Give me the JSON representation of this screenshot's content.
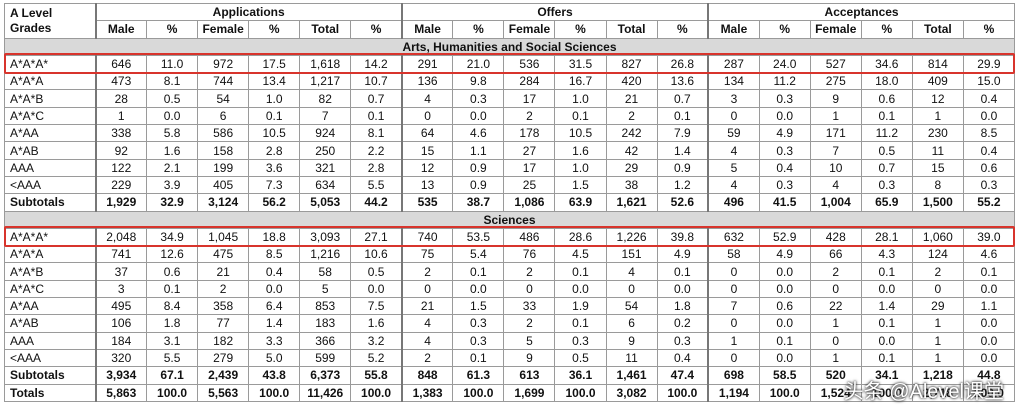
{
  "header": {
    "grades_label": "A Level Grades",
    "groups": [
      "Applications",
      "Offers",
      "Acceptances"
    ],
    "columns": [
      "Male",
      "%",
      "Female",
      "%",
      "Total",
      "%"
    ]
  },
  "sections": [
    {
      "title": "Arts, Humanities and Social Sciences",
      "rows": [
        [
          "A*A*A*",
          "646",
          "11.0",
          "972",
          "17.5",
          "1,618",
          "14.2",
          "291",
          "21.0",
          "536",
          "31.5",
          "827",
          "26.8",
          "287",
          "24.0",
          "527",
          "34.6",
          "814",
          "29.9"
        ],
        [
          "A*A*A",
          "473",
          "8.1",
          "744",
          "13.4",
          "1,217",
          "10.7",
          "136",
          "9.8",
          "284",
          "16.7",
          "420",
          "13.6",
          "134",
          "11.2",
          "275",
          "18.0",
          "409",
          "15.0"
        ],
        [
          "A*A*B",
          "28",
          "0.5",
          "54",
          "1.0",
          "82",
          "0.7",
          "4",
          "0.3",
          "17",
          "1.0",
          "21",
          "0.7",
          "3",
          "0.3",
          "9",
          "0.6",
          "12",
          "0.4"
        ],
        [
          "A*A*C",
          "1",
          "0.0",
          "6",
          "0.1",
          "7",
          "0.1",
          "0",
          "0.0",
          "2",
          "0.1",
          "2",
          "0.1",
          "0",
          "0.0",
          "1",
          "0.1",
          "1",
          "0.0"
        ],
        [
          "A*AA",
          "338",
          "5.8",
          "586",
          "10.5",
          "924",
          "8.1",
          "64",
          "4.6",
          "178",
          "10.5",
          "242",
          "7.9",
          "59",
          "4.9",
          "171",
          "11.2",
          "230",
          "8.5"
        ],
        [
          "A*AB",
          "92",
          "1.6",
          "158",
          "2.8",
          "250",
          "2.2",
          "15",
          "1.1",
          "27",
          "1.6",
          "42",
          "1.4",
          "4",
          "0.3",
          "7",
          "0.5",
          "11",
          "0.4"
        ],
        [
          "AAA",
          "122",
          "2.1",
          "199",
          "3.6",
          "321",
          "2.8",
          "12",
          "0.9",
          "17",
          "1.0",
          "29",
          "0.9",
          "5",
          "0.4",
          "10",
          "0.7",
          "15",
          "0.6"
        ],
        [
          "<AAA",
          "229",
          "3.9",
          "405",
          "7.3",
          "634",
          "5.5",
          "13",
          "0.9",
          "25",
          "1.5",
          "38",
          "1.2",
          "4",
          "0.3",
          "4",
          "0.3",
          "8",
          "0.3"
        ]
      ],
      "subtotals": [
        "Subtotals",
        "1,929",
        "32.9",
        "3,124",
        "56.2",
        "5,053",
        "44.2",
        "535",
        "38.7",
        "1,086",
        "63.9",
        "1,621",
        "52.6",
        "496",
        "41.5",
        "1,004",
        "65.9",
        "1,500",
        "55.2"
      ]
    },
    {
      "title": "Sciences",
      "rows": [
        [
          "A*A*A*",
          "2,048",
          "34.9",
          "1,045",
          "18.8",
          "3,093",
          "27.1",
          "740",
          "53.5",
          "486",
          "28.6",
          "1,226",
          "39.8",
          "632",
          "52.9",
          "428",
          "28.1",
          "1,060",
          "39.0"
        ],
        [
          "A*A*A",
          "741",
          "12.6",
          "475",
          "8.5",
          "1,216",
          "10.6",
          "75",
          "5.4",
          "76",
          "4.5",
          "151",
          "4.9",
          "58",
          "4.9",
          "66",
          "4.3",
          "124",
          "4.6"
        ],
        [
          "A*A*B",
          "37",
          "0.6",
          "21",
          "0.4",
          "58",
          "0.5",
          "2",
          "0.1",
          "2",
          "0.1",
          "4",
          "0.1",
          "0",
          "0.0",
          "2",
          "0.1",
          "2",
          "0.1"
        ],
        [
          "A*A*C",
          "3",
          "0.1",
          "2",
          "0.0",
          "5",
          "0.0",
          "0",
          "0.0",
          "0",
          "0.0",
          "0",
          "0.0",
          "0",
          "0.0",
          "0",
          "0.0",
          "0",
          "0.0"
        ],
        [
          "A*AA",
          "495",
          "8.4",
          "358",
          "6.4",
          "853",
          "7.5",
          "21",
          "1.5",
          "33",
          "1.9",
          "54",
          "1.8",
          "7",
          "0.6",
          "22",
          "1.4",
          "29",
          "1.1"
        ],
        [
          "A*AB",
          "106",
          "1.8",
          "77",
          "1.4",
          "183",
          "1.6",
          "4",
          "0.3",
          "2",
          "0.1",
          "6",
          "0.2",
          "0",
          "0.0",
          "1",
          "0.1",
          "1",
          "0.0"
        ],
        [
          "AAA",
          "184",
          "3.1",
          "182",
          "3.3",
          "366",
          "3.2",
          "4",
          "0.3",
          "5",
          "0.3",
          "9",
          "0.3",
          "1",
          "0.1",
          "0",
          "0.0",
          "1",
          "0.0"
        ],
        [
          "<AAA",
          "320",
          "5.5",
          "279",
          "5.0",
          "599",
          "5.2",
          "2",
          "0.1",
          "9",
          "0.5",
          "11",
          "0.4",
          "0",
          "0.0",
          "1",
          "0.1",
          "1",
          "0.0"
        ]
      ],
      "subtotals": [
        "Subtotals",
        "3,934",
        "67.1",
        "2,439",
        "43.8",
        "6,373",
        "55.8",
        "848",
        "61.3",
        "613",
        "36.1",
        "1,461",
        "47.4",
        "698",
        "58.5",
        "520",
        "34.1",
        "1,218",
        "44.8"
      ]
    }
  ],
  "totals": [
    "Totals",
    "5,863",
    "100.0",
    "5,563",
    "100.0",
    "11,426",
    "100.0",
    "1,383",
    "100.0",
    "1,699",
    "100.0",
    "3,082",
    "100.0",
    "1,194",
    "100.0",
    "1,524",
    "100.0",
    "2,718",
    "100.0"
  ],
  "watermark": "头条 @Alevel课堂"
}
